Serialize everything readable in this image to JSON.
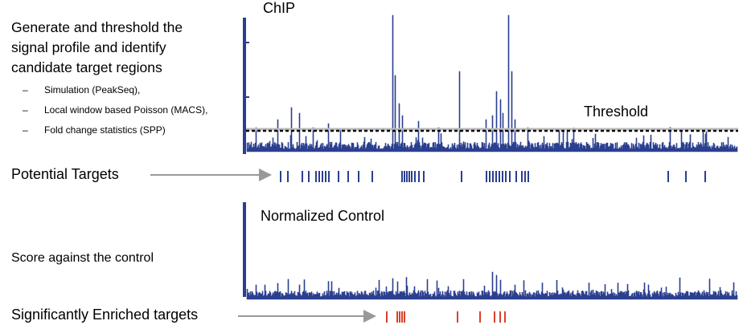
{
  "intro": {
    "lines": [
      "Generate and threshold the",
      "signal profile and identify",
      "candidate target regions"
    ],
    "methods": [
      "Simulation (PeakSeq),",
      "Local window based Poisson (MACS),",
      "Fold change statistics (SPP)"
    ]
  },
  "chip": {
    "title": "ChIP",
    "threshold_label": "Threshold"
  },
  "potential_targets": {
    "label": "Potential Targets"
  },
  "control": {
    "title": "Normalized Control",
    "score_label": "Score against the control"
  },
  "enriched_targets": {
    "label": "Significantly Enriched targets"
  },
  "colors": {
    "signal": "#2b3f8f",
    "potential_ticks": "#2b3f8f",
    "enriched_ticks": "#d9422b",
    "arrow": "#999999",
    "threshold": "#000000"
  }
}
